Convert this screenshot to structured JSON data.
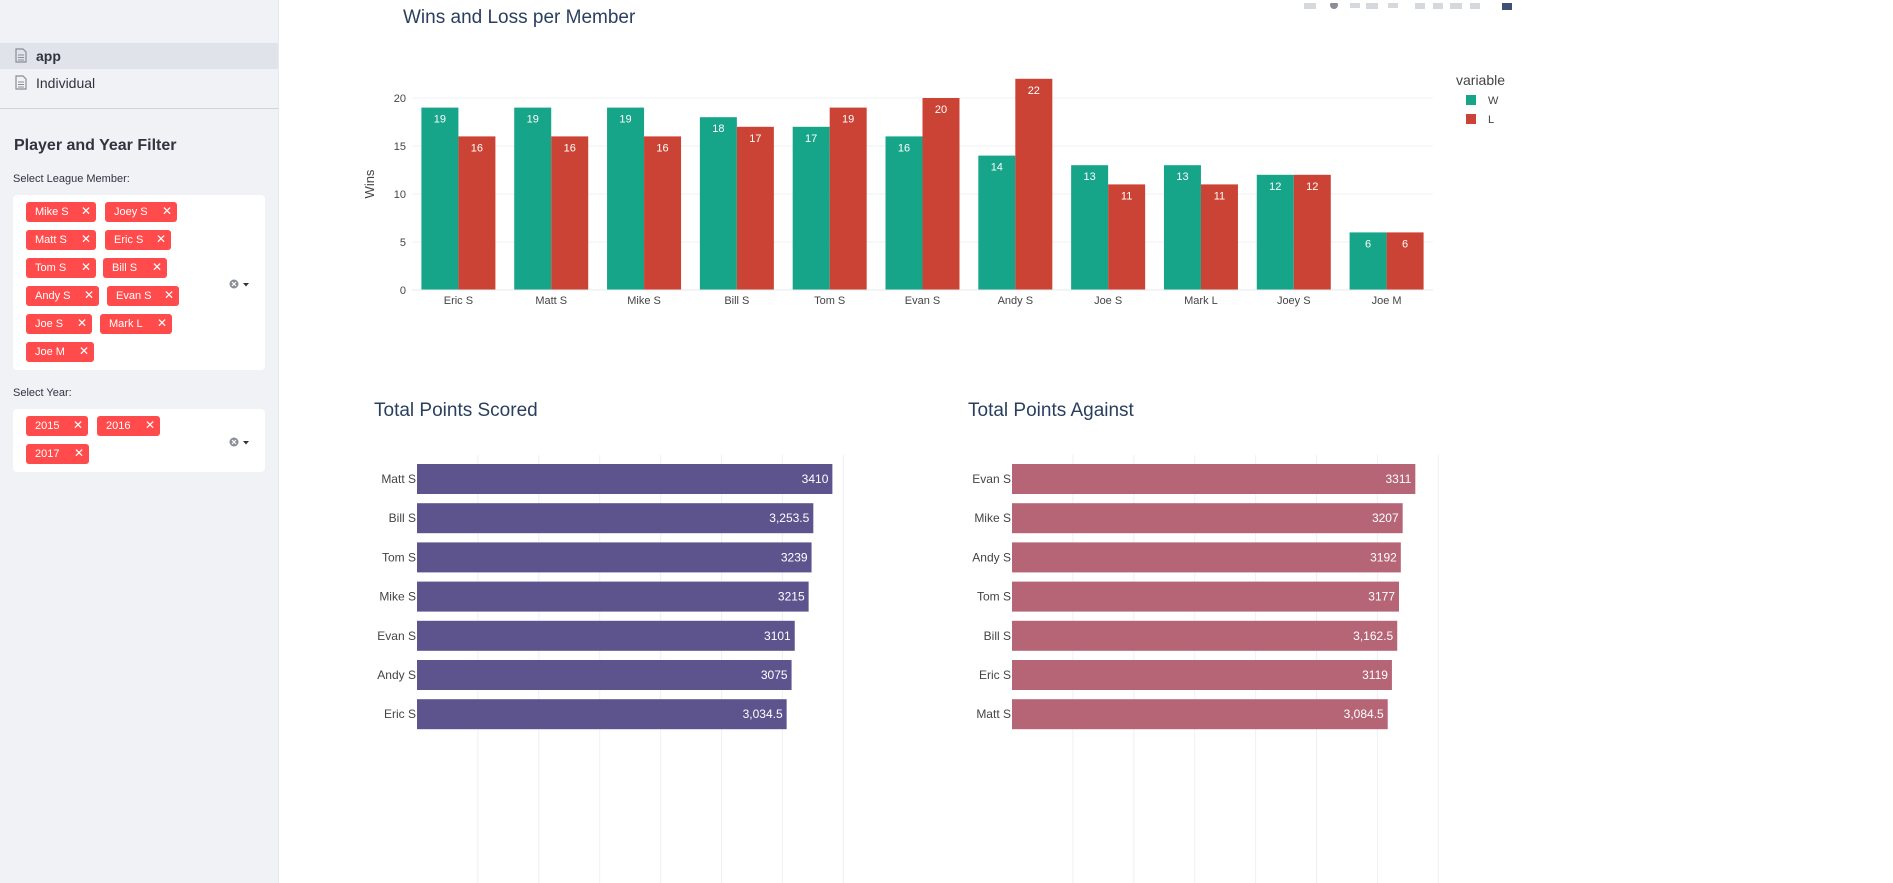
{
  "sidebar": {
    "nav": [
      {
        "label": "app",
        "active": true
      },
      {
        "label": "Individual",
        "active": false
      }
    ],
    "filter_title": "Player and Year Filter",
    "member_label": "Select League Member:",
    "member_tags": [
      "Mike S",
      "Joey S",
      "Matt S",
      "Eric S",
      "Tom S",
      "Bill S",
      "Andy S",
      "Evan S",
      "Joe S",
      "Mark L",
      "Joe M"
    ],
    "year_label": "Select Year:",
    "year_tags": [
      "2015",
      "2016",
      "2017"
    ]
  },
  "toolbar": {
    "icons": [
      "camera-icon",
      "zoom-icon",
      "pan-icon",
      "box-select-icon",
      "lasso-icon",
      "zoom-in-icon",
      "zoom-out-icon",
      "autoscale-icon",
      "home-icon",
      "plotly-logo-icon"
    ]
  },
  "colors": {
    "win": "#17a589",
    "loss": "#cb4335",
    "scored": "#5d548e",
    "against": "#b56576",
    "tag": "#ff4b4b"
  },
  "chart_data": [
    {
      "type": "bar",
      "title": "Wins and Loss per Member",
      "ylabel": "Wins",
      "xlabel": "",
      "ylim": [
        0,
        23
      ],
      "yticks": [
        0,
        5,
        10,
        15,
        20
      ],
      "legend": {
        "title": "variable",
        "placement": "top-right"
      },
      "categories": [
        "Eric S",
        "Matt S",
        "Mike S",
        "Bill S",
        "Tom S",
        "Evan S",
        "Andy S",
        "Joe S",
        "Mark L",
        "Joey S",
        "Joe M"
      ],
      "series": [
        {
          "name": "W",
          "values": [
            19,
            19,
            19,
            18,
            17,
            16,
            14,
            13,
            13,
            12,
            6
          ]
        },
        {
          "name": "L",
          "values": [
            16,
            16,
            16,
            17,
            19,
            20,
            22,
            11,
            11,
            12,
            6
          ]
        }
      ]
    },
    {
      "type": "bar",
      "orientation": "horizontal",
      "title": "Total Points Scored",
      "categories": [
        "Matt S",
        "Bill S",
        "Tom S",
        "Mike S",
        "Evan S",
        "Andy S",
        "Eric S"
      ],
      "values": [
        3410,
        3253.5,
        3239,
        3215,
        3101,
        3075,
        3034.5
      ],
      "labels": [
        "3410",
        "3,253.5",
        "3239",
        "3215",
        "3101",
        "3075",
        "3,034.5"
      ]
    },
    {
      "type": "bar",
      "orientation": "horizontal",
      "title": "Total Points Against",
      "categories": [
        "Evan S",
        "Mike S",
        "Andy S",
        "Tom S",
        "Bill S",
        "Eric S",
        "Matt S"
      ],
      "values": [
        3311,
        3207,
        3192,
        3177,
        3162.5,
        3119,
        3084.5
      ],
      "labels": [
        "3311",
        "3207",
        "3192",
        "3177",
        "3,162.5",
        "3119",
        "3,084.5"
      ]
    }
  ]
}
